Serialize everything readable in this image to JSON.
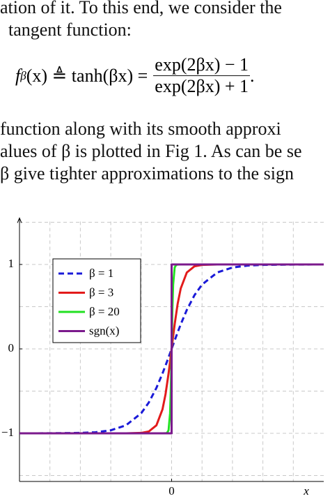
{
  "paragraph_top": [
    "ation of it. To this end, we consider the",
    "tangent function:"
  ],
  "equation": {
    "f": "f",
    "sub": "β",
    "rest": "(x) ≜ tanh(βx) =",
    "numerator": "exp(2βx) − 1",
    "denominator": "exp(2βx) + 1",
    "end": "."
  },
  "paragraph_bottom": [
    "function along with its smooth approxi",
    "alues of β is plotted in Fig 1. As can be se",
    "β give tighter approximations to the sign"
  ],
  "chart_data": {
    "type": "line",
    "xlabel": "x",
    "xlim": [
      -5,
      5
    ],
    "ylim": [
      -1.57,
      1.55
    ],
    "xticks": [
      0
    ],
    "xgrid": [
      -4,
      -3,
      -2,
      -1,
      0,
      1,
      2,
      3,
      4
    ],
    "yticks": [
      1,
      0,
      {
        "value": -1,
        "label": "−1"
      }
    ],
    "ygrid": [
      -1.5,
      -1,
      -0.5,
      0,
      0.5,
      1,
      1.5
    ],
    "grid": true,
    "legend": "upper left",
    "series": [
      {
        "name": "β = 1",
        "color": "#1a1ad8",
        "dashed": true,
        "x": [
          -5,
          -4,
          -3,
          -2.5,
          -2,
          -1.5,
          -1,
          -0.75,
          -0.5,
          -0.3,
          -0.2,
          -0.1,
          -0.05,
          0,
          0.05,
          0.1,
          0.2,
          0.3,
          0.5,
          0.75,
          1,
          1.5,
          2,
          2.5,
          3,
          4,
          5
        ],
        "values": [
          -1,
          -0.999,
          -0.995,
          -0.987,
          -0.964,
          -0.905,
          -0.762,
          -0.635,
          -0.462,
          -0.291,
          -0.197,
          -0.1,
          -0.05,
          0,
          0.05,
          0.1,
          0.197,
          0.291,
          0.462,
          0.635,
          0.762,
          0.905,
          0.964,
          0.987,
          0.995,
          0.999,
          1
        ]
      },
      {
        "name": "β = 3",
        "color": "#e21b1b",
        "dashed": false,
        "x": [
          -5,
          -4,
          -3,
          -2.5,
          -2,
          -1.5,
          -1,
          -0.75,
          -0.5,
          -0.3,
          -0.2,
          -0.1,
          -0.05,
          0,
          0.05,
          0.1,
          0.2,
          0.3,
          0.5,
          0.75,
          1,
          1.5,
          2,
          2.5,
          3,
          4,
          5
        ],
        "values": [
          -1,
          -1,
          -1,
          -1,
          -1,
          -1,
          -0.995,
          -0.978,
          -0.905,
          -0.716,
          -0.537,
          -0.291,
          -0.149,
          0,
          0.149,
          0.291,
          0.537,
          0.716,
          0.905,
          0.978,
          0.995,
          1,
          1,
          1,
          1,
          1,
          1
        ]
      },
      {
        "name": "β = 20",
        "color": "#22e022",
        "dashed": false,
        "x": [
          -5,
          -0.3,
          -0.2,
          -0.15,
          -0.1,
          -0.05,
          -0.025,
          0,
          0.025,
          0.05,
          0.1,
          0.15,
          0.2,
          0.3,
          5
        ],
        "values": [
          -1,
          -1,
          -0.999,
          -0.995,
          -0.964,
          -0.762,
          -0.462,
          0,
          0.462,
          0.762,
          0.964,
          0.995,
          0.999,
          1,
          1
        ]
      },
      {
        "name": "sgn(x)",
        "color": "#7b1a8c",
        "dashed": false,
        "x": [
          -5,
          0,
          0,
          5
        ],
        "values": [
          -1,
          -1,
          1,
          1
        ]
      }
    ]
  }
}
